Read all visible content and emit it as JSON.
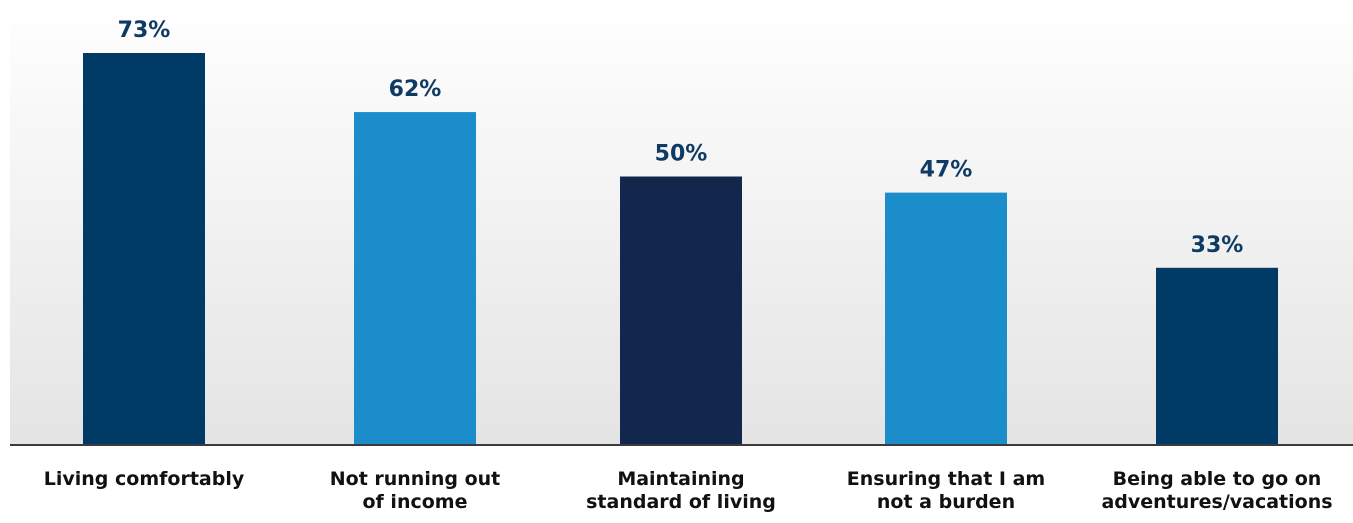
{
  "chart_data": {
    "type": "bar",
    "title": "",
    "xlabel": "",
    "ylabel": "",
    "ylim": [
      0,
      80
    ],
    "grid": false,
    "legend": "none",
    "categories": [
      [
        "Living comfortably"
      ],
      [
        "Not running out",
        "of income"
      ],
      [
        "Maintaining",
        "standard of living"
      ],
      [
        "Ensuring that I am",
        "not a burden"
      ],
      [
        "Being able to go on",
        "adventures/vacations"
      ]
    ],
    "values": [
      73,
      62,
      50,
      47,
      33
    ],
    "value_labels": [
      "73%",
      "62%",
      "50%",
      "47%",
      "33%"
    ],
    "colors": [
      "#003b66",
      "#1b8dcb",
      "#13264b",
      "#1b8dcb",
      "#003b66"
    ],
    "background_gradient": [
      "#ffffff",
      "#e4e4e4"
    ],
    "axis_color": "#3a3a3a"
  }
}
